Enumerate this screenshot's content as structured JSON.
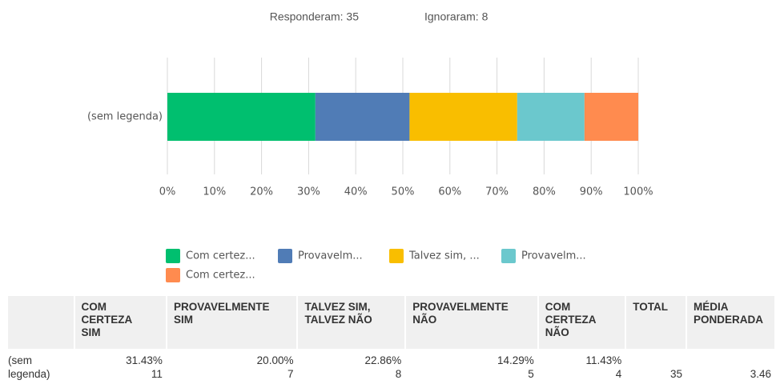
{
  "chart_data": {
    "type": "stacked_barh",
    "header": [
      "Responderam: 35",
      "Ignoraram: 8"
    ],
    "categories": [
      "(sem legenda)"
    ],
    "series": [
      {
        "name": "Com certez...",
        "color": "#00bf6f",
        "values": [
          31.43
        ]
      },
      {
        "name": "Provavelm...",
        "color": "#507cb6",
        "values": [
          20.0
        ]
      },
      {
        "name": "Talvez sim, ...",
        "color": "#f9be00",
        "values": [
          22.86
        ]
      },
      {
        "name": "Provavelm...",
        "color": "#6bc8cd",
        "values": [
          14.29
        ]
      },
      {
        "name": "Com certez...",
        "color": "#ff8b4f",
        "values": [
          11.43
        ]
      }
    ],
    "xlim": [
      0,
      100
    ],
    "xticks": [
      {
        "value": 0,
        "label": "0%"
      },
      {
        "value": 10,
        "label": "10%"
      },
      {
        "value": 20,
        "label": "20%"
      },
      {
        "value": 30,
        "label": "30%"
      },
      {
        "value": 40,
        "label": "40%"
      },
      {
        "value": 50,
        "label": "50%"
      },
      {
        "value": 60,
        "label": "60%"
      },
      {
        "value": 70,
        "label": "70%"
      },
      {
        "value": 80,
        "label": "80%"
      },
      {
        "value": 90,
        "label": "90%"
      },
      {
        "value": 100,
        "label": "100%"
      }
    ],
    "grid": true
  },
  "table": {
    "headers": [
      [],
      [
        "COM",
        "CERTEZA",
        "SIM"
      ],
      [
        "PROVAVELMENTE",
        "SIM"
      ],
      [
        "TALVEZ SIM,",
        "TALVEZ NÃO"
      ],
      [
        "PROVAVELMENTE",
        "NÃO"
      ],
      [
        "COM",
        "CERTEZA",
        "NÃO"
      ],
      [
        "TOTAL"
      ],
      [
        "MÉDIA",
        "PONDERADA"
      ]
    ],
    "rows": [
      {
        "label": [
          "(sem",
          "legenda)"
        ],
        "cells": [
          [
            "31.43%",
            "11"
          ],
          [
            "20.00%",
            "7"
          ],
          [
            "22.86%",
            "8"
          ],
          [
            "14.29%",
            "5"
          ],
          [
            "11.43%",
            "4"
          ]
        ],
        "total": "35",
        "average": "3.46"
      }
    ]
  }
}
